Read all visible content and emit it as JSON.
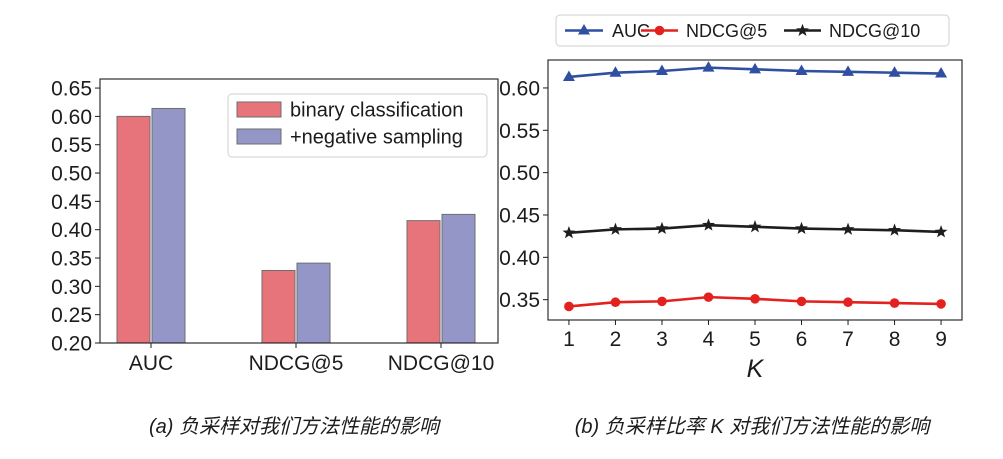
{
  "chart_data": [
    {
      "type": "bar",
      "title": "",
      "xlabel": "",
      "ylabel": "",
      "caption": "(a) 负采样对我们方法性能的影响",
      "categories": [
        "AUC",
        "NDCG@5",
        "NDCG@10"
      ],
      "series": [
        {
          "name": "binary classification",
          "color": "#E8747B",
          "values": [
            0.6,
            0.328,
            0.416
          ]
        },
        {
          "name": "+negative sampling",
          "color": "#9496C7",
          "values": [
            0.614,
            0.341,
            0.427
          ]
        }
      ],
      "ylim": [
        0.2,
        0.666
      ],
      "yticks": [
        "0.20",
        "0.25",
        "0.30",
        "0.35",
        "0.40",
        "0.45",
        "0.50",
        "0.55",
        "0.60",
        "0.65"
      ],
      "grid": false,
      "legend": "top-right"
    },
    {
      "type": "line",
      "title": "",
      "xlabel": "K",
      "ylabel": "",
      "caption": "(b) 负采样比率 K 对我们方法性能的影响",
      "x": [
        1,
        2,
        3,
        4,
        5,
        6,
        7,
        8,
        9
      ],
      "series": [
        {
          "name": "AUC",
          "color": "#2F4FA2",
          "marker": "triangle",
          "values": [
            0.613,
            0.618,
            0.62,
            0.624,
            0.622,
            0.62,
            0.619,
            0.618,
            0.617
          ]
        },
        {
          "name": "NDCG@5",
          "color": "#E3211F",
          "marker": "circle",
          "values": [
            0.342,
            0.347,
            0.348,
            0.353,
            0.351,
            0.348,
            0.347,
            0.346,
            0.345
          ]
        },
        {
          "name": "NDCG@10",
          "color": "#1E1E1E",
          "marker": "star",
          "values": [
            0.429,
            0.433,
            0.434,
            0.438,
            0.436,
            0.434,
            0.433,
            0.432,
            0.43
          ]
        }
      ],
      "xlim": [
        0.55,
        9.45
      ],
      "ylim": [
        0.326,
        0.633
      ],
      "yticks": [
        "0.35",
        "0.40",
        "0.45",
        "0.50",
        "0.55",
        "0.60"
      ],
      "grid": false,
      "legend": "top-outside"
    }
  ]
}
